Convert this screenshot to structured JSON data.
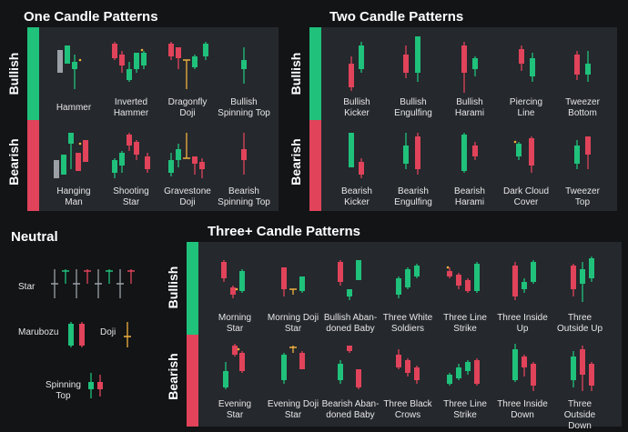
{
  "colors": {
    "bullish": "#1fc17b",
    "bearish": "#e0435a",
    "neutral": "#f0b13e",
    "panel": "#25282d",
    "background": "#121416"
  },
  "titles": {
    "one": "One Candle Patterns",
    "two": "Two Candle Patterns",
    "neutral": "Neutral",
    "three": "Three+ Candle Patterns"
  },
  "sides": {
    "bullish": "Bullish",
    "bearish": "Bearish"
  },
  "one": {
    "bullish": [
      "Hammer",
      "Inverted\nHammer",
      "Dragonfly\nDoji",
      "Bullish\nSpinning Top"
    ],
    "bearish": [
      "Hanging\nMan",
      "Shooting\nStar",
      "Gravestone\nDoji",
      "Bearish\nSpinning Top"
    ]
  },
  "two": {
    "bullish": [
      "Bullish\nKicker",
      "Bullish\nEngulfing",
      "Bullish\nHarami",
      "Piercing\nLine",
      "Tweezer\nBottom"
    ],
    "bearish": [
      "Bearish\nKicker",
      "Bearish\nEngulfing",
      "Bearish\nHarami",
      "Dark Cloud\nCover",
      "Tweezer\nTop"
    ]
  },
  "three": {
    "bullish": [
      "Morning\nStar",
      "Morning Doji\nStar",
      "Bullish Aban-\ndoned Baby",
      "Three White\nSoldiers",
      "Three Line\nStrike",
      "Three Inside\nUp",
      "Three\nOutside Up"
    ],
    "bearish": [
      "Evening\nStar",
      "Evening Doji\nStar",
      "Bearish Aban-\ndoned Baby",
      "Three Black\nCrows",
      "Three Line\nStrike",
      "Three Inside\nDown",
      "Three Outside\nDown"
    ]
  },
  "neutral": {
    "star": "Star",
    "marubozu": "Marubozu",
    "doji": "Doji",
    "spinning_top": "Spinning\nTop"
  }
}
